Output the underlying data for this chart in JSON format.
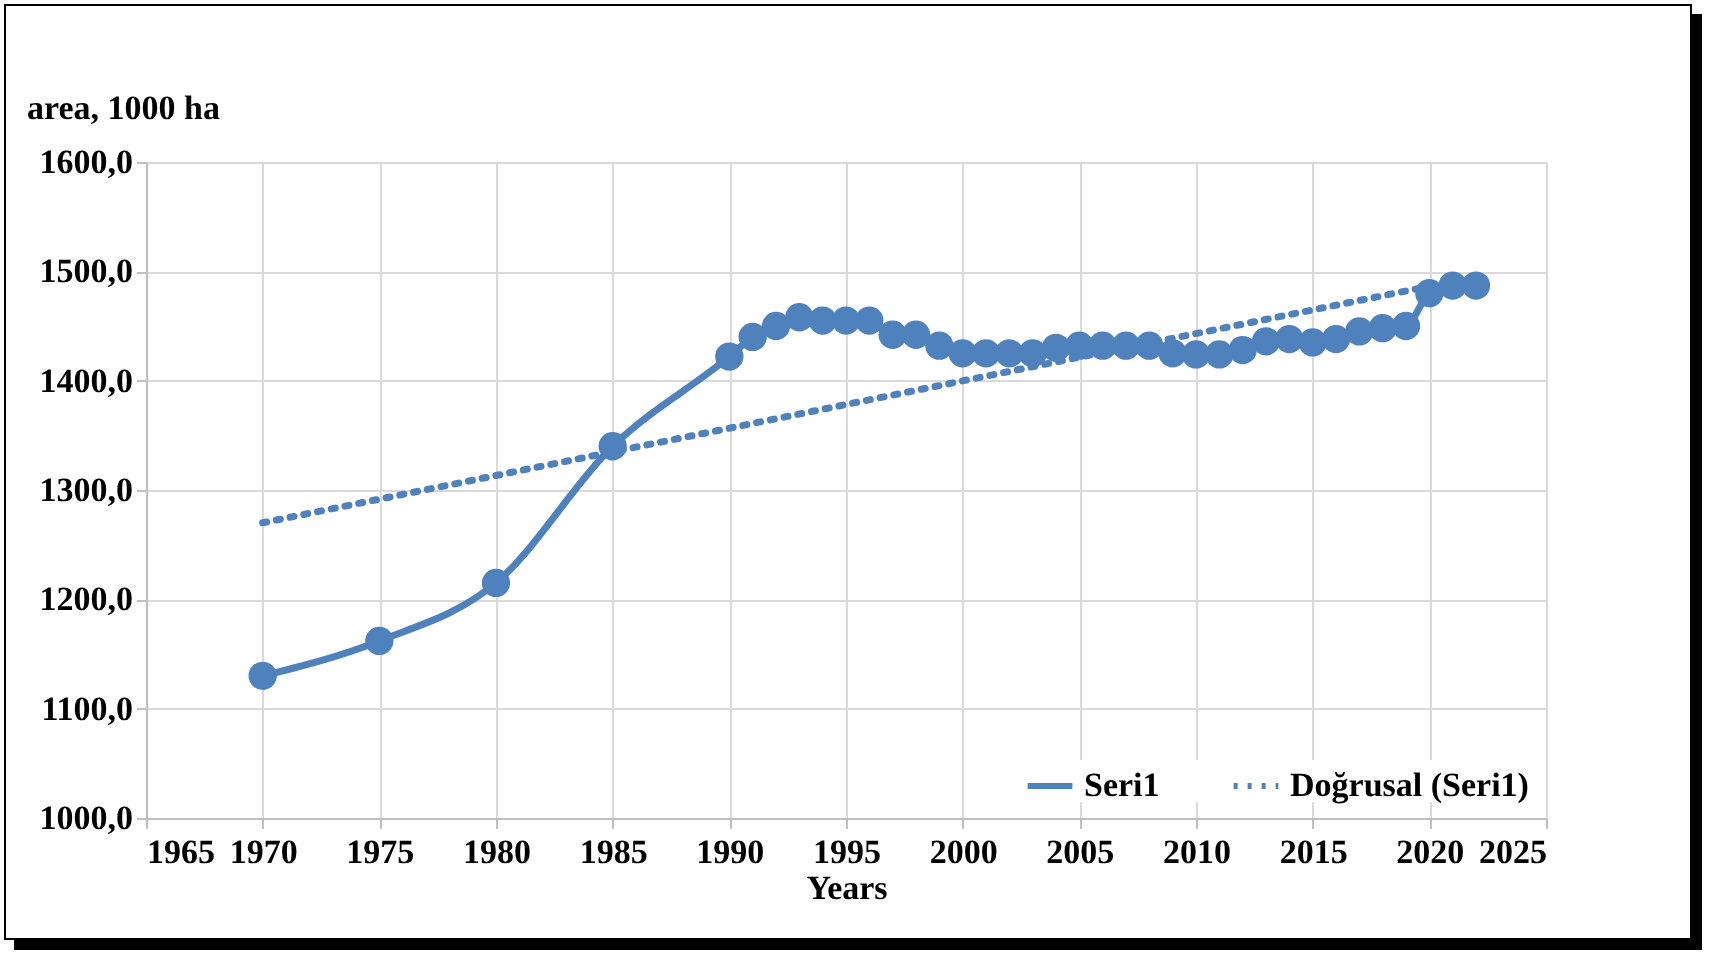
{
  "chart_data": {
    "type": "line",
    "xlabel": "Years",
    "ylabel": "area, 1000 ha",
    "xlim": [
      1965,
      2025
    ],
    "xticks": [
      1965,
      1970,
      1975,
      1980,
      1985,
      1990,
      1995,
      2000,
      2005,
      2010,
      2015,
      2020,
      2025
    ],
    "ylim": [
      1000,
      1600
    ],
    "yticks": [
      {
        "value": 1000,
        "label": "1000,0"
      },
      {
        "value": 1100,
        "label": "1100,0"
      },
      {
        "value": 1200,
        "label": "1200,0"
      },
      {
        "value": 1300,
        "label": "1300,0"
      },
      {
        "value": 1400,
        "label": "1400,0"
      },
      {
        "value": 1500,
        "label": "1500,0"
      },
      {
        "value": 1600,
        "label": "1600,0"
      }
    ],
    "grid": true,
    "legend": "bottom right",
    "series": [
      {
        "name": "Seri1",
        "color": "#4f81bd",
        "marker": "circle",
        "line_style": "solid",
        "x": [
          1970,
          1975,
          1980,
          1985,
          1990,
          1991,
          1992,
          1993,
          1994,
          1995,
          1996,
          1997,
          1998,
          1999,
          2000,
          2001,
          2002,
          2003,
          2004,
          2005,
          2006,
          2007,
          2008,
          2009,
          2010,
          2011,
          2012,
          2013,
          2014,
          2015,
          2016,
          2017,
          2018,
          2019,
          2020,
          2021,
          2022
        ],
        "values": [
          1130,
          1162,
          1215,
          1340,
          1422,
          1440,
          1450,
          1458,
          1455,
          1455,
          1455,
          1442,
          1442,
          1432,
          1425,
          1425,
          1425,
          1425,
          1430,
          1432,
          1432,
          1432,
          1432,
          1425,
          1424,
          1424,
          1428,
          1436,
          1438,
          1435,
          1438,
          1445,
          1448,
          1450,
          1480,
          1487,
          1487
        ]
      },
      {
        "name": "Doğrusal (Seri1)",
        "color": "#4f81bd",
        "marker": "none",
        "line_style": "dotted",
        "x": [
          1970,
          2022
        ],
        "values": [
          1270,
          1495
        ]
      }
    ]
  }
}
